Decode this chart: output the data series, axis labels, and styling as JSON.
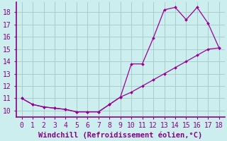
{
  "xlabel": "Windchill (Refroidissement éolien,°C)",
  "line1_x": [
    0,
    1,
    2,
    3,
    4,
    5,
    6,
    7,
    8,
    9,
    10,
    11,
    12,
    13,
    14,
    15,
    16,
    17,
    18
  ],
  "line1_y": [
    11.0,
    10.5,
    10.3,
    10.2,
    10.1,
    9.9,
    9.9,
    9.9,
    10.5,
    11.1,
    13.8,
    13.8,
    15.9,
    18.2,
    18.4,
    17.4,
    18.4,
    17.1,
    15.1
  ],
  "line2_x": [
    0,
    1,
    2,
    3,
    4,
    5,
    6,
    7,
    8,
    9,
    10,
    11,
    12,
    13,
    14,
    15,
    16,
    17,
    18
  ],
  "line2_y": [
    11.0,
    10.5,
    10.3,
    10.2,
    10.1,
    9.9,
    9.9,
    9.9,
    10.5,
    11.1,
    11.5,
    12.0,
    12.5,
    13.0,
    13.5,
    14.0,
    14.5,
    15.0,
    15.1
  ],
  "line_color": "#990099",
  "bg_color": "#cceeee",
  "grid_color": "#aacccc",
  "axis_color": "#880088",
  "xlim": [
    -0.5,
    18.5
  ],
  "ylim": [
    9.5,
    18.8
  ],
  "xticks": [
    0,
    1,
    2,
    3,
    4,
    5,
    6,
    7,
    8,
    9,
    10,
    11,
    12,
    13,
    14,
    15,
    16,
    17,
    18
  ],
  "yticks": [
    10,
    11,
    12,
    13,
    14,
    15,
    16,
    17,
    18
  ],
  "xlabel_fontsize": 7.5,
  "tick_fontsize": 7
}
